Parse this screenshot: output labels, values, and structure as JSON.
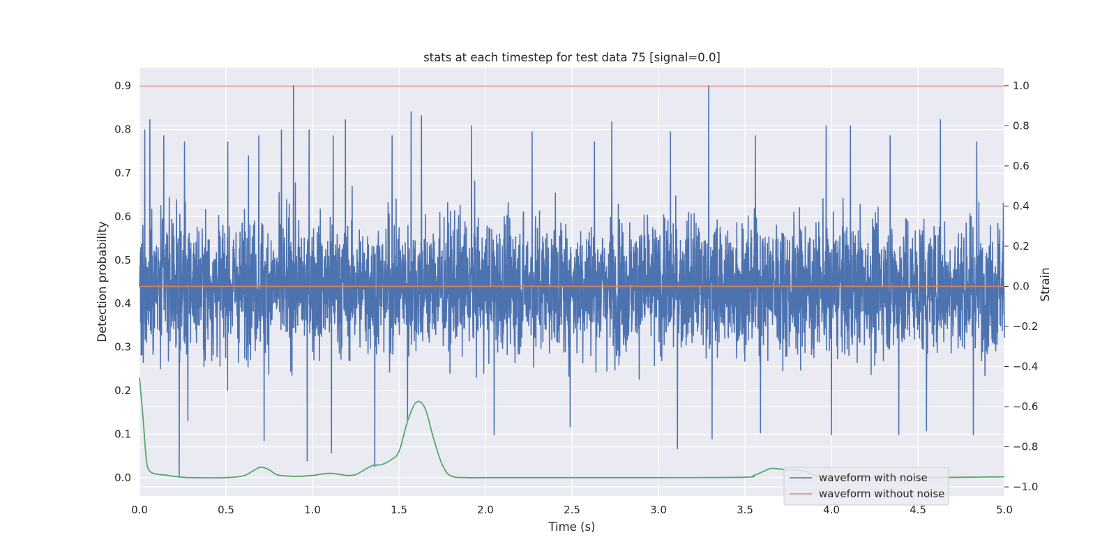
{
  "chart_data": {
    "type": "line",
    "title": "stats at each timestep for test data 75 [signal=0.0]",
    "xlabel": "Time (s)",
    "ylabel_left": "Detection probability",
    "ylabel_right": "Strain",
    "xlim": [
      0.0,
      5.0
    ],
    "ylim_left": [
      -0.042,
      0.942
    ],
    "ylim_right": [
      -1.045,
      1.09
    ],
    "x_ticks": [
      "0.0",
      "0.5",
      "1.0",
      "1.5",
      "2.0",
      "2.5",
      "3.0",
      "3.5",
      "4.0",
      "4.5",
      "5.0"
    ],
    "y_ticks_left": [
      "0.0",
      "0.1",
      "0.2",
      "0.3",
      "0.4",
      "0.5",
      "0.6",
      "0.7",
      "0.8",
      "0.9"
    ],
    "y_ticks_right": [
      "−1.0",
      "−0.8",
      "−0.6",
      "−0.4",
      "−0.2",
      "0.0",
      "0.2",
      "0.4",
      "0.6",
      "0.8",
      "1.0"
    ],
    "grid": true,
    "legend_position": "lower-right",
    "colors": {
      "noisy": "#4c72b0",
      "clean": "#dd8452",
      "probability": "#55a868",
      "threshold": "#d9534f",
      "background": "#eaeaf2",
      "grid": "#ffffff"
    },
    "series": [
      {
        "name": "waveform with noise",
        "axis": "right",
        "sample_count": 4096,
        "envelope": [
          0.55,
          -0.55
        ],
        "peaks": [
          {
            "x": 0.03,
            "y": 0.78
          },
          {
            "x": 0.06,
            "y": 0.83
          },
          {
            "x": 0.14,
            "y": 0.75
          },
          {
            "x": 0.26,
            "y": 0.72
          },
          {
            "x": 0.51,
            "y": 0.72
          },
          {
            "x": 0.63,
            "y": 0.65
          },
          {
            "x": 0.69,
            "y": 0.75
          },
          {
            "x": 0.82,
            "y": 0.78
          },
          {
            "x": 0.89,
            "y": 1.0
          },
          {
            "x": 0.98,
            "y": 0.78
          },
          {
            "x": 1.12,
            "y": 0.75
          },
          {
            "x": 1.19,
            "y": 0.83
          },
          {
            "x": 1.36,
            "y": 0.72
          },
          {
            "x": 1.46,
            "y": 0.75
          },
          {
            "x": 1.55,
            "y": 0.77
          },
          {
            "x": 1.57,
            "y": 0.87
          },
          {
            "x": 1.63,
            "y": 0.85
          },
          {
            "x": 1.92,
            "y": 0.8
          },
          {
            "x": 2.27,
            "y": 0.77
          },
          {
            "x": 2.63,
            "y": 0.72
          },
          {
            "x": 2.73,
            "y": 0.82
          },
          {
            "x": 3.07,
            "y": 0.77
          },
          {
            "x": 3.29,
            "y": 1.0
          },
          {
            "x": 3.56,
            "y": 0.75
          },
          {
            "x": 3.97,
            "y": 0.8
          },
          {
            "x": 4.11,
            "y": 0.8
          },
          {
            "x": 4.34,
            "y": 0.75
          },
          {
            "x": 4.63,
            "y": 0.83
          },
          {
            "x": 4.84,
            "y": 0.72
          }
        ],
        "troughs": [
          {
            "x": 0.23,
            "y": -0.95
          },
          {
            "x": 0.28,
            "y": -0.67
          },
          {
            "x": 0.72,
            "y": -0.77
          },
          {
            "x": 0.97,
            "y": -0.87
          },
          {
            "x": 1.11,
            "y": -0.83
          },
          {
            "x": 1.36,
            "y": -0.9
          },
          {
            "x": 1.55,
            "y": -0.67
          },
          {
            "x": 2.05,
            "y": -0.74
          },
          {
            "x": 2.49,
            "y": -0.7
          },
          {
            "x": 3.11,
            "y": -0.81
          },
          {
            "x": 3.31,
            "y": -0.76
          },
          {
            "x": 3.59,
            "y": -0.73
          },
          {
            "x": 4.0,
            "y": -0.74
          },
          {
            "x": 4.39,
            "y": -0.74
          },
          {
            "x": 4.55,
            "y": -0.72
          },
          {
            "x": 4.82,
            "y": -0.74
          }
        ]
      },
      {
        "name": "waveform without noise",
        "axis": "right",
        "x": [
          0.0,
          5.0
        ],
        "y": [
          0.0,
          0.0
        ]
      },
      {
        "axis": "left",
        "x": [
          0.0,
          0.02,
          0.04,
          0.06,
          0.1,
          0.15,
          0.2,
          0.25,
          0.3,
          0.5,
          0.6,
          0.65,
          0.7,
          0.75,
          0.8,
          0.9,
          1.0,
          1.05,
          1.1,
          1.15,
          1.2,
          1.25,
          1.3,
          1.35,
          1.4,
          1.45,
          1.5,
          1.55,
          1.6,
          1.65,
          1.7,
          1.75,
          1.8,
          1.9,
          2.0,
          2.5,
          3.0,
          3.5,
          3.55,
          3.6,
          3.65,
          3.7,
          3.75,
          3.8,
          3.85,
          3.9,
          4.0,
          4.5,
          5.0
        ],
        "y": [
          0.23,
          0.14,
          0.04,
          0.015,
          0.008,
          0.006,
          0.003,
          0.001,
          0.0,
          0.0,
          0.004,
          0.014,
          0.024,
          0.018,
          0.006,
          0.003,
          0.005,
          0.008,
          0.01,
          0.008,
          0.005,
          0.007,
          0.018,
          0.028,
          0.03,
          0.04,
          0.06,
          0.13,
          0.173,
          0.16,
          0.09,
          0.03,
          0.004,
          0.0,
          0.0,
          0.0,
          0.0,
          0.001,
          0.005,
          0.013,
          0.021,
          0.02,
          0.017,
          0.018,
          0.014,
          0.006,
          0.002,
          0.0,
          0.002
        ]
      },
      {
        "axis": "left",
        "x": [
          0.0,
          5.0
        ],
        "y": [
          0.9,
          0.9
        ]
      }
    ],
    "legend": [
      "waveform with noise",
      "waveform without noise"
    ]
  }
}
